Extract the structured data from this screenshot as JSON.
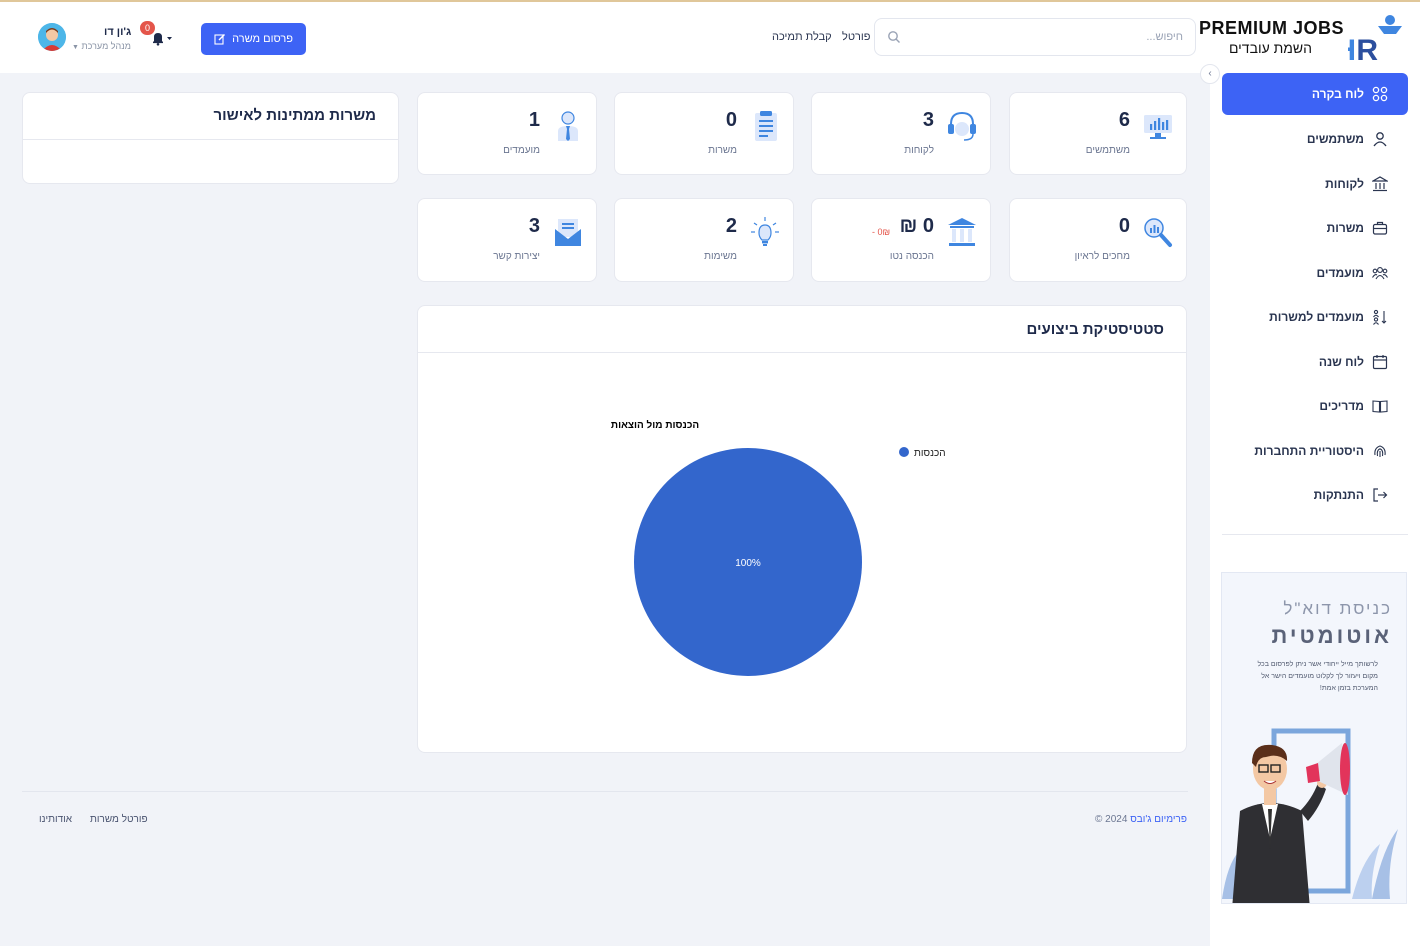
{
  "brand": {
    "logo_title": "PREMIUM JOBS",
    "logo_subtitle": "השמת עובדים"
  },
  "header": {
    "search_placeholder": "חיפוש...",
    "links": [
      "פורטל",
      "קבלת תמיכה"
    ],
    "post_button": "פרסום משרה",
    "notifications_count": "0",
    "user_name": "ג'ון דו",
    "user_role": "מנהל מערכת"
  },
  "sidebar": {
    "items": [
      {
        "label": "לוח בקרה",
        "icon": "dashboard-grid-icon",
        "active": true
      },
      {
        "label": "משתמשים",
        "icon": "user-icon"
      },
      {
        "label": "לקוחות",
        "icon": "bank-icon"
      },
      {
        "label": "משרות",
        "icon": "briefcase-icon"
      },
      {
        "label": "מועמדים",
        "icon": "group-icon"
      },
      {
        "label": "מועמדים למשרות",
        "icon": "sort-people-icon"
      },
      {
        "label": "לוח שנה",
        "icon": "calendar-icon"
      },
      {
        "label": "מדריכים",
        "icon": "book-icon"
      },
      {
        "label": "היסטוריית התחברות",
        "icon": "fingerprint-icon"
      },
      {
        "label": "התנתקות",
        "icon": "logout-icon"
      }
    ],
    "promo": {
      "line1": "כניסת דוא\"ל",
      "line2": "אוטומטית",
      "text": "לרשותך מייל ייחודי אשר ניתן לפרסום בכל מקום ויעזור לך לקלוט מועמדים הישר אל המערכת בזמן אמת!"
    }
  },
  "stats": {
    "users": {
      "value": "6",
      "label": "משתמשים",
      "icon": "monitor-chart-icon"
    },
    "clients": {
      "value": "3",
      "label": "לקוחות",
      "icon": "headset-icon"
    },
    "jobs": {
      "value": "0",
      "label": "משרות",
      "icon": "clipboard-icon"
    },
    "candidates": {
      "value": "1",
      "label": "מועמדים",
      "icon": "person-tie-icon"
    },
    "waiting_interview": {
      "value": "0",
      "label": "מחכים לראיון",
      "icon": "magnifier-chart-icon"
    },
    "net_income": {
      "value": "0 ₪",
      "label": "הכנסה נטו",
      "sub": "0₪ -",
      "icon": "bank-columns-icon"
    },
    "tasks": {
      "value": "2",
      "label": "משימות",
      "icon": "lightbulb-icon"
    },
    "contacts": {
      "value": "3",
      "label": "יצירות קשר",
      "icon": "envelope-icon"
    }
  },
  "pending_jobs": {
    "title": "משרות ממתינות לאישור"
  },
  "performance": {
    "title": "סטטיסטיקת ביצועים"
  },
  "chart_data": {
    "type": "pie",
    "title": "הכנסות מול הוצאות",
    "slices": [
      {
        "label": "הכנסות",
        "value": 100,
        "color": "#3366cc"
      }
    ],
    "data_labels": [
      "100%"
    ],
    "legend_position": "right"
  },
  "footer": {
    "copyright_year": "2024 ©",
    "brand": "פרימיום ג'ובס",
    "links": [
      "פורטל משרות",
      "אודותינו"
    ]
  }
}
